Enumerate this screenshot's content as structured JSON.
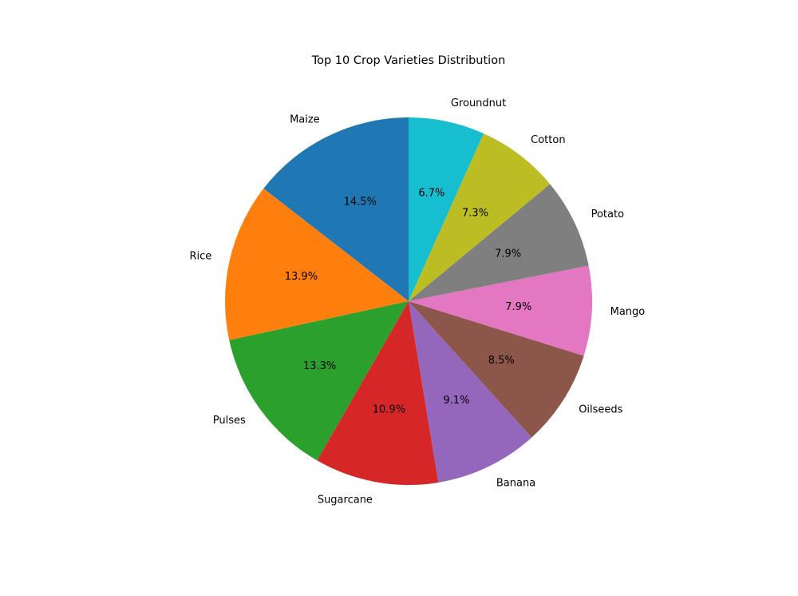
{
  "chart_data": {
    "type": "pie",
    "title": "Top 10 Crop Varieties Distribution",
    "start_angle_deg": 90,
    "direction": "counterclockwise",
    "slices": [
      {
        "label": "Maize",
        "percent": 14.5,
        "pct_label": "14.5%",
        "color": "#1f77b4"
      },
      {
        "label": "Rice",
        "percent": 13.9,
        "pct_label": "13.9%",
        "color": "#ff7f0e"
      },
      {
        "label": "Pulses",
        "percent": 13.3,
        "pct_label": "13.3%",
        "color": "#2ca02c"
      },
      {
        "label": "Sugarcane",
        "percent": 10.9,
        "pct_label": "10.9%",
        "color": "#d62728"
      },
      {
        "label": "Banana",
        "percent": 9.1,
        "pct_label": "9.1%",
        "color": "#9467bd"
      },
      {
        "label": "Oilseeds",
        "percent": 8.5,
        "pct_label": "8.5%",
        "color": "#8c564b"
      },
      {
        "label": "Mango",
        "percent": 7.9,
        "pct_label": "7.9%",
        "color": "#e377c2"
      },
      {
        "label": "Potato",
        "percent": 7.9,
        "pct_label": "7.9%",
        "color": "#7f7f7f"
      },
      {
        "label": "Cotton",
        "percent": 7.3,
        "pct_label": "7.3%",
        "color": "#bcbd22"
      },
      {
        "label": "Groundnut",
        "percent": 6.7,
        "pct_label": "6.7%",
        "color": "#17becf"
      }
    ]
  }
}
